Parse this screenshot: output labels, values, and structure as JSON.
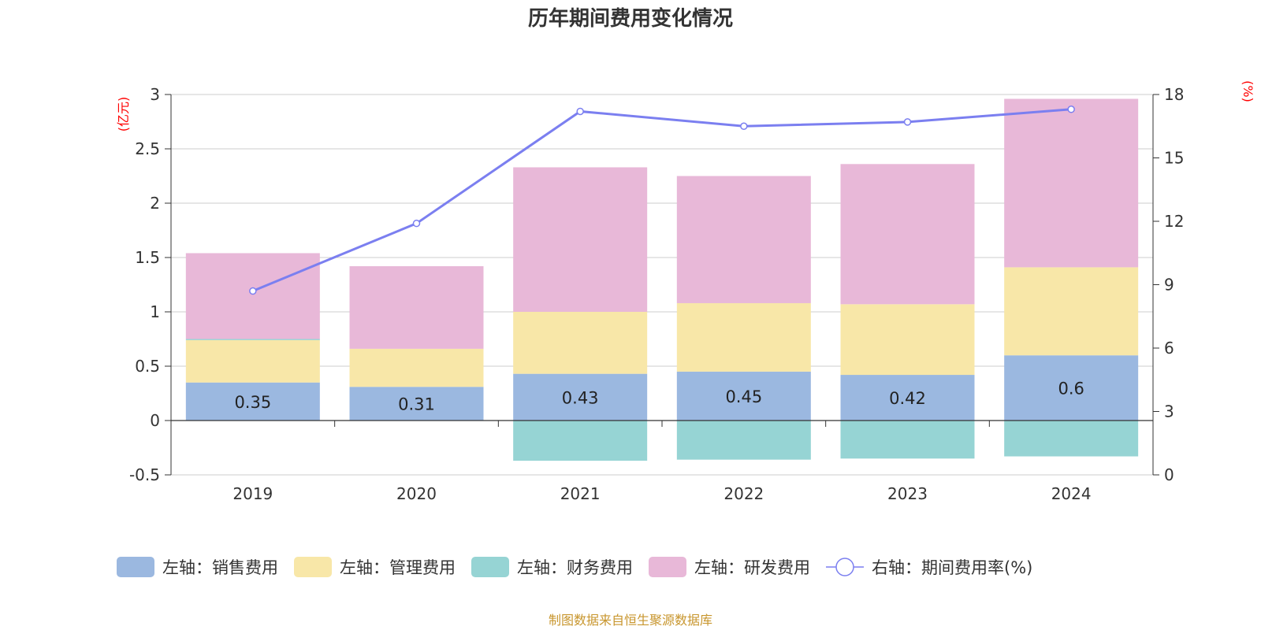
{
  "chart_data": {
    "type": "bar",
    "title": "历年期间费用变化情况",
    "categories": [
      "2019",
      "2020",
      "2021",
      "2022",
      "2023",
      "2024"
    ],
    "left_axis": {
      "unit": "(亿元)",
      "ylim": [
        -0.5,
        3
      ],
      "ticks": [
        "3",
        "2.5",
        "2",
        "1.5",
        "1",
        "0.5",
        "0",
        "-0.5"
      ]
    },
    "right_axis": {
      "unit": "(%)",
      "ylim": [
        0,
        18
      ],
      "ticks": [
        "18",
        "15",
        "12",
        "9",
        "6",
        "3",
        "0"
      ]
    },
    "series": [
      {
        "name": "左轴：销售费用",
        "axis": "left",
        "kind": "bar",
        "color": "#9bb8e0",
        "values": [
          0.35,
          0.31,
          0.43,
          0.45,
          0.42,
          0.6
        ],
        "labels": [
          "0.35",
          "0.31",
          "0.43",
          "0.45",
          "0.42",
          "0.6"
        ]
      },
      {
        "name": "左轴：管理费用",
        "axis": "left",
        "kind": "bar",
        "color": "#f8e7a8",
        "values": [
          0.39,
          0.35,
          0.57,
          0.63,
          0.65,
          0.81
        ]
      },
      {
        "name": "左轴：财务费用",
        "axis": "left",
        "kind": "bar",
        "color": "#96d4d4",
        "values": [
          0.01,
          0.0,
          -0.37,
          -0.36,
          -0.35,
          -0.33
        ]
      },
      {
        "name": "左轴：研发费用",
        "axis": "left",
        "kind": "bar",
        "color": "#e8b8d8",
        "values": [
          0.79,
          0.76,
          1.33,
          1.17,
          1.29,
          1.55
        ]
      },
      {
        "name": "右轴：期间费用率(%)",
        "axis": "right",
        "kind": "line",
        "color": "#7b7ff0",
        "values": [
          8.7,
          11.9,
          17.2,
          16.5,
          16.7,
          17.3
        ]
      }
    ]
  },
  "footer": {
    "source": "制图数据来自恒生聚源数据库"
  }
}
